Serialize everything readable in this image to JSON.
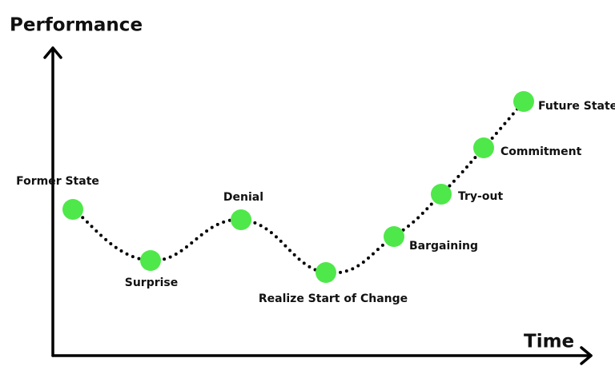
{
  "axes": {
    "y_label": "Performance",
    "x_label": "Time"
  },
  "nodes": [
    {
      "label": "Former State"
    },
    {
      "label": "Surprise"
    },
    {
      "label": "Denial"
    },
    {
      "label": "Realize Start of Change"
    },
    {
      "label": "Bargaining"
    },
    {
      "label": "Try-out"
    },
    {
      "label": "Commitment"
    },
    {
      "label": "Future State"
    }
  ]
}
